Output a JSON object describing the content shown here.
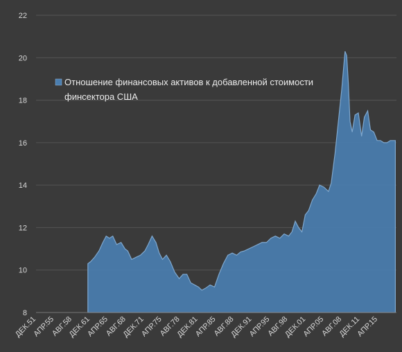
{
  "chart_data": {
    "type": "area",
    "title": "",
    "xlabel": "",
    "ylabel": "",
    "ylim": [
      8,
      22
    ],
    "yticks": [
      8,
      10,
      12,
      14,
      16,
      18,
      20,
      22
    ],
    "grid": true,
    "legend_position": "top-left",
    "x_tick_labels": [
      "ДЕК.51",
      "АПР.55",
      "АВГ.58",
      "ДЕК.61",
      "АПР.65",
      "АВГ.68",
      "ДЕК.71",
      "АПР.75",
      "АВГ.78",
      "ДЕК.81",
      "АПР.85",
      "АВГ.88",
      "ДЕК.91",
      "АПР.95",
      "АВГ.98",
      "ДЕК.01",
      "АПР.05",
      "АВГ.08",
      "ДЕК.11",
      "АПР.15"
    ],
    "series": [
      {
        "name": "Отношение финансовых активов к добавленной стоимости финсектора США",
        "color": "#4a7eb0",
        "x": [
          1951.92,
          1961.3,
          1961.8,
          1962.5,
          1963.3,
          1964.0,
          1964.6,
          1965.2,
          1965.8,
          1966.5,
          1967.3,
          1968.0,
          1968.5,
          1969.2,
          1970.0,
          1970.8,
          1971.6,
          1972.2,
          1972.9,
          1973.6,
          1974.2,
          1974.8,
          1975.5,
          1976.2,
          1977.0,
          1977.8,
          1978.5,
          1979.2,
          1979.9,
          1980.6,
          1981.3,
          1981.9,
          1982.6,
          1983.4,
          1984.2,
          1985.0,
          1985.8,
          1986.6,
          1987.4,
          1988.2,
          1988.9,
          1989.6,
          1990.4,
          1991.2,
          1992.0,
          1992.8,
          1993.6,
          1994.4,
          1995.2,
          1996.0,
          1996.8,
          1997.6,
          1998.2,
          1998.8,
          1999.4,
          2000.0,
          2000.6,
          2001.2,
          2001.9,
          2002.6,
          2003.2,
          2004.0,
          2004.8,
          2005.3,
          2006.0,
          2006.6,
          2007.2,
          2007.8,
          2008.1,
          2008.4,
          2008.7,
          2009.1,
          2009.6,
          2010.2,
          2010.8,
          2011.3,
          2011.9,
          2012.4,
          2013.0,
          2013.6,
          2014.2,
          2014.8,
          2015.4,
          2016.0,
          2016.5,
          2016.9
        ],
        "values": [
          null,
          10.3,
          10.4,
          10.6,
          10.9,
          11.3,
          11.6,
          11.5,
          11.6,
          11.2,
          11.3,
          11.0,
          10.9,
          10.5,
          10.6,
          10.7,
          10.9,
          11.2,
          11.6,
          11.3,
          10.8,
          10.5,
          10.7,
          10.4,
          9.9,
          9.6,
          9.8,
          9.8,
          9.4,
          9.3,
          9.2,
          9.05,
          9.15,
          9.3,
          9.2,
          9.8,
          10.3,
          10.7,
          10.8,
          10.7,
          10.85,
          10.9,
          11.0,
          11.1,
          11.2,
          11.3,
          11.3,
          11.5,
          11.6,
          11.5,
          11.7,
          11.6,
          11.8,
          12.3,
          12.0,
          11.8,
          12.6,
          12.8,
          13.3,
          13.6,
          14.0,
          13.9,
          13.7,
          14.1,
          15.5,
          17.0,
          18.5,
          20.3,
          20.1,
          18.8,
          17.0,
          16.5,
          17.3,
          17.4,
          16.3,
          17.2,
          17.5,
          16.6,
          16.5,
          16.1,
          16.1,
          16.0,
          16.0,
          16.1,
          16.1,
          16.1
        ]
      }
    ]
  }
}
